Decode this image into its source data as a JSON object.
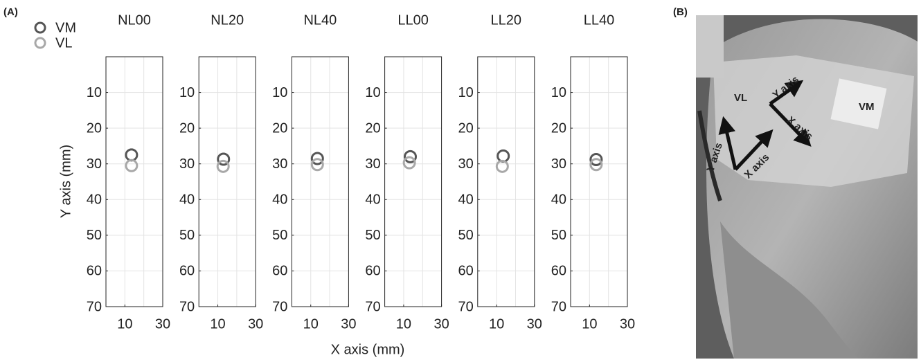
{
  "figure": {
    "panel_a": "(A)",
    "panel_b": "(B)",
    "xlabel": "X axis (mm)",
    "ylabel": "Y axis (mm)",
    "photo_labels": [
      "VL",
      "VM",
      "Y axis",
      "X axis",
      "Y axis",
      "X axis"
    ]
  },
  "chart_data": [
    {
      "type": "scatter",
      "title": "NL00",
      "xlim": [
        0,
        30
      ],
      "ylim": [
        0,
        70
      ],
      "y_reversed": true,
      "xticks": [
        10,
        30
      ],
      "x_grid": [
        10,
        20
      ],
      "yticks": [
        10,
        20,
        30,
        40,
        50,
        60,
        70
      ],
      "grid": true,
      "series": [
        {
          "name": "VM",
          "color": "#555555",
          "x": [
            13.5
          ],
          "y": [
            27.5
          ]
        },
        {
          "name": "VL",
          "color": "#a8a8a8",
          "x": [
            13.5
          ],
          "y": [
            30.5
          ]
        }
      ]
    },
    {
      "type": "scatter",
      "title": "NL20",
      "xlim": [
        0,
        30
      ],
      "ylim": [
        0,
        70
      ],
      "y_reversed": true,
      "xticks": [
        10,
        30
      ],
      "x_grid": [
        10,
        20
      ],
      "yticks": [
        10,
        20,
        30,
        40,
        50,
        60,
        70
      ],
      "grid": true,
      "series": [
        {
          "name": "VM",
          "color": "#555555",
          "x": [
            13
          ],
          "y": [
            28.7
          ]
        },
        {
          "name": "VL",
          "color": "#a8a8a8",
          "x": [
            12.8
          ],
          "y": [
            30.7
          ]
        }
      ]
    },
    {
      "type": "scatter",
      "title": "NL40",
      "xlim": [
        0,
        30
      ],
      "ylim": [
        0,
        70
      ],
      "y_reversed": true,
      "xticks": [
        10,
        30
      ],
      "x_grid": [
        10,
        20
      ],
      "yticks": [
        10,
        20,
        30,
        40,
        50,
        60,
        70
      ],
      "grid": true,
      "series": [
        {
          "name": "VM",
          "color": "#555555",
          "x": [
            13.5
          ],
          "y": [
            28.5
          ]
        },
        {
          "name": "VL",
          "color": "#a8a8a8",
          "x": [
            13.5
          ],
          "y": [
            30.2
          ]
        }
      ]
    },
    {
      "type": "scatter",
      "title": "LL00",
      "xlim": [
        0,
        30
      ],
      "ylim": [
        0,
        70
      ],
      "y_reversed": true,
      "xticks": [
        10,
        30
      ],
      "x_grid": [
        10,
        20
      ],
      "yticks": [
        10,
        20,
        30,
        40,
        50,
        60,
        70
      ],
      "grid": true,
      "series": [
        {
          "name": "VM",
          "color": "#555555",
          "x": [
            13.5
          ],
          "y": [
            28
          ]
        },
        {
          "name": "VL",
          "color": "#a8a8a8",
          "x": [
            13
          ],
          "y": [
            29.7
          ]
        }
      ]
    },
    {
      "type": "scatter",
      "title": "LL20",
      "xlim": [
        0,
        30
      ],
      "ylim": [
        0,
        70
      ],
      "y_reversed": true,
      "xticks": [
        10,
        30
      ],
      "x_grid": [
        10,
        20
      ],
      "yticks": [
        10,
        20,
        30,
        40,
        50,
        60,
        70
      ],
      "grid": true,
      "series": [
        {
          "name": "VM",
          "color": "#555555",
          "x": [
            13.5
          ],
          "y": [
            27.8
          ]
        },
        {
          "name": "VL",
          "color": "#a8a8a8",
          "x": [
            13
          ],
          "y": [
            30.7
          ]
        }
      ]
    },
    {
      "type": "scatter",
      "title": "LL40",
      "xlim": [
        0,
        30
      ],
      "ylim": [
        0,
        70
      ],
      "y_reversed": true,
      "xticks": [
        10,
        30
      ],
      "x_grid": [
        10,
        20
      ],
      "yticks": [
        10,
        20,
        30,
        40,
        50,
        60,
        70
      ],
      "grid": true,
      "series": [
        {
          "name": "VM",
          "color": "#555555",
          "x": [
            13.5
          ],
          "y": [
            28.8
          ]
        },
        {
          "name": "VL",
          "color": "#a8a8a8",
          "x": [
            13.5
          ],
          "y": [
            30.2
          ]
        }
      ]
    }
  ]
}
